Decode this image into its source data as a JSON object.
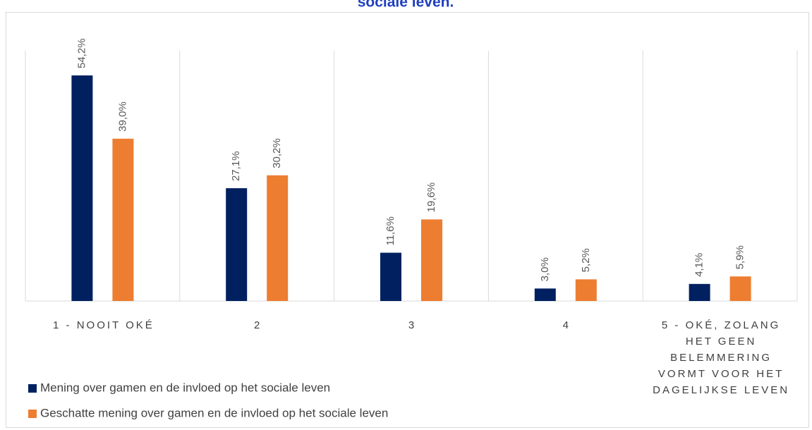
{
  "chart_data": {
    "type": "bar",
    "title": "sociale leven.",
    "categories": [
      "1 - NOOIT OKÉ",
      "2",
      "3",
      "4",
      "5 - OKÉ, ZOLANG HET GEEN BELEMMERING VORMT VOOR HET DAGELIJKSE LEVEN"
    ],
    "series": [
      {
        "name": "Mening over gamen en de invloed op het sociale leven",
        "color": "#002060",
        "values": [
          54.2,
          27.1,
          11.6,
          3.0,
          4.1
        ],
        "value_labels": [
          "54,2%",
          "27,1%",
          "11,6%",
          "3,0%",
          "4,1%"
        ]
      },
      {
        "name": "Geschatte mening over gamen en de invloed op het sociale leven",
        "color": "#ed7d31",
        "values": [
          39.0,
          30.2,
          19.6,
          5.2,
          5.9
        ],
        "value_labels": [
          "39,0%",
          "30,2%",
          "19,6%",
          "5,2%",
          "5,9%"
        ]
      }
    ],
    "grid": true
  }
}
